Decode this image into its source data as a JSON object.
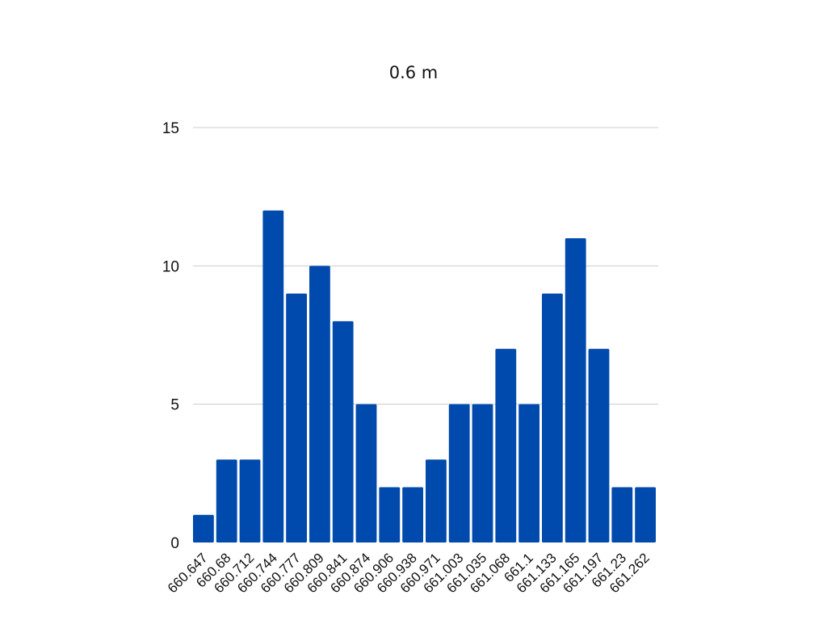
{
  "chart_data": {
    "type": "bar",
    "title": "0.6 m",
    "xlabel": "",
    "ylabel": "",
    "categories": [
      "660.647",
      "660.68",
      "660.712",
      "660.744",
      "660.777",
      "660.809",
      "660.841",
      "660.874",
      "660.906",
      "660.938",
      "660.971",
      "661.003",
      "661.035",
      "661.068",
      "661.1",
      "661.133",
      "661.165",
      "661.197",
      "661.23",
      "661.262"
    ],
    "values": [
      1,
      3,
      3,
      12,
      9,
      10,
      8,
      5,
      2,
      2,
      3,
      5,
      5,
      7,
      5,
      9,
      11,
      7,
      2,
      2
    ],
    "ylim": [
      0,
      15
    ],
    "yticks": [
      "0",
      "5",
      "10",
      "15"
    ],
    "grid": true,
    "legend": "none",
    "colors": {
      "bar": "#004aad",
      "grid": "#cccccc",
      "text": "#111111"
    }
  }
}
